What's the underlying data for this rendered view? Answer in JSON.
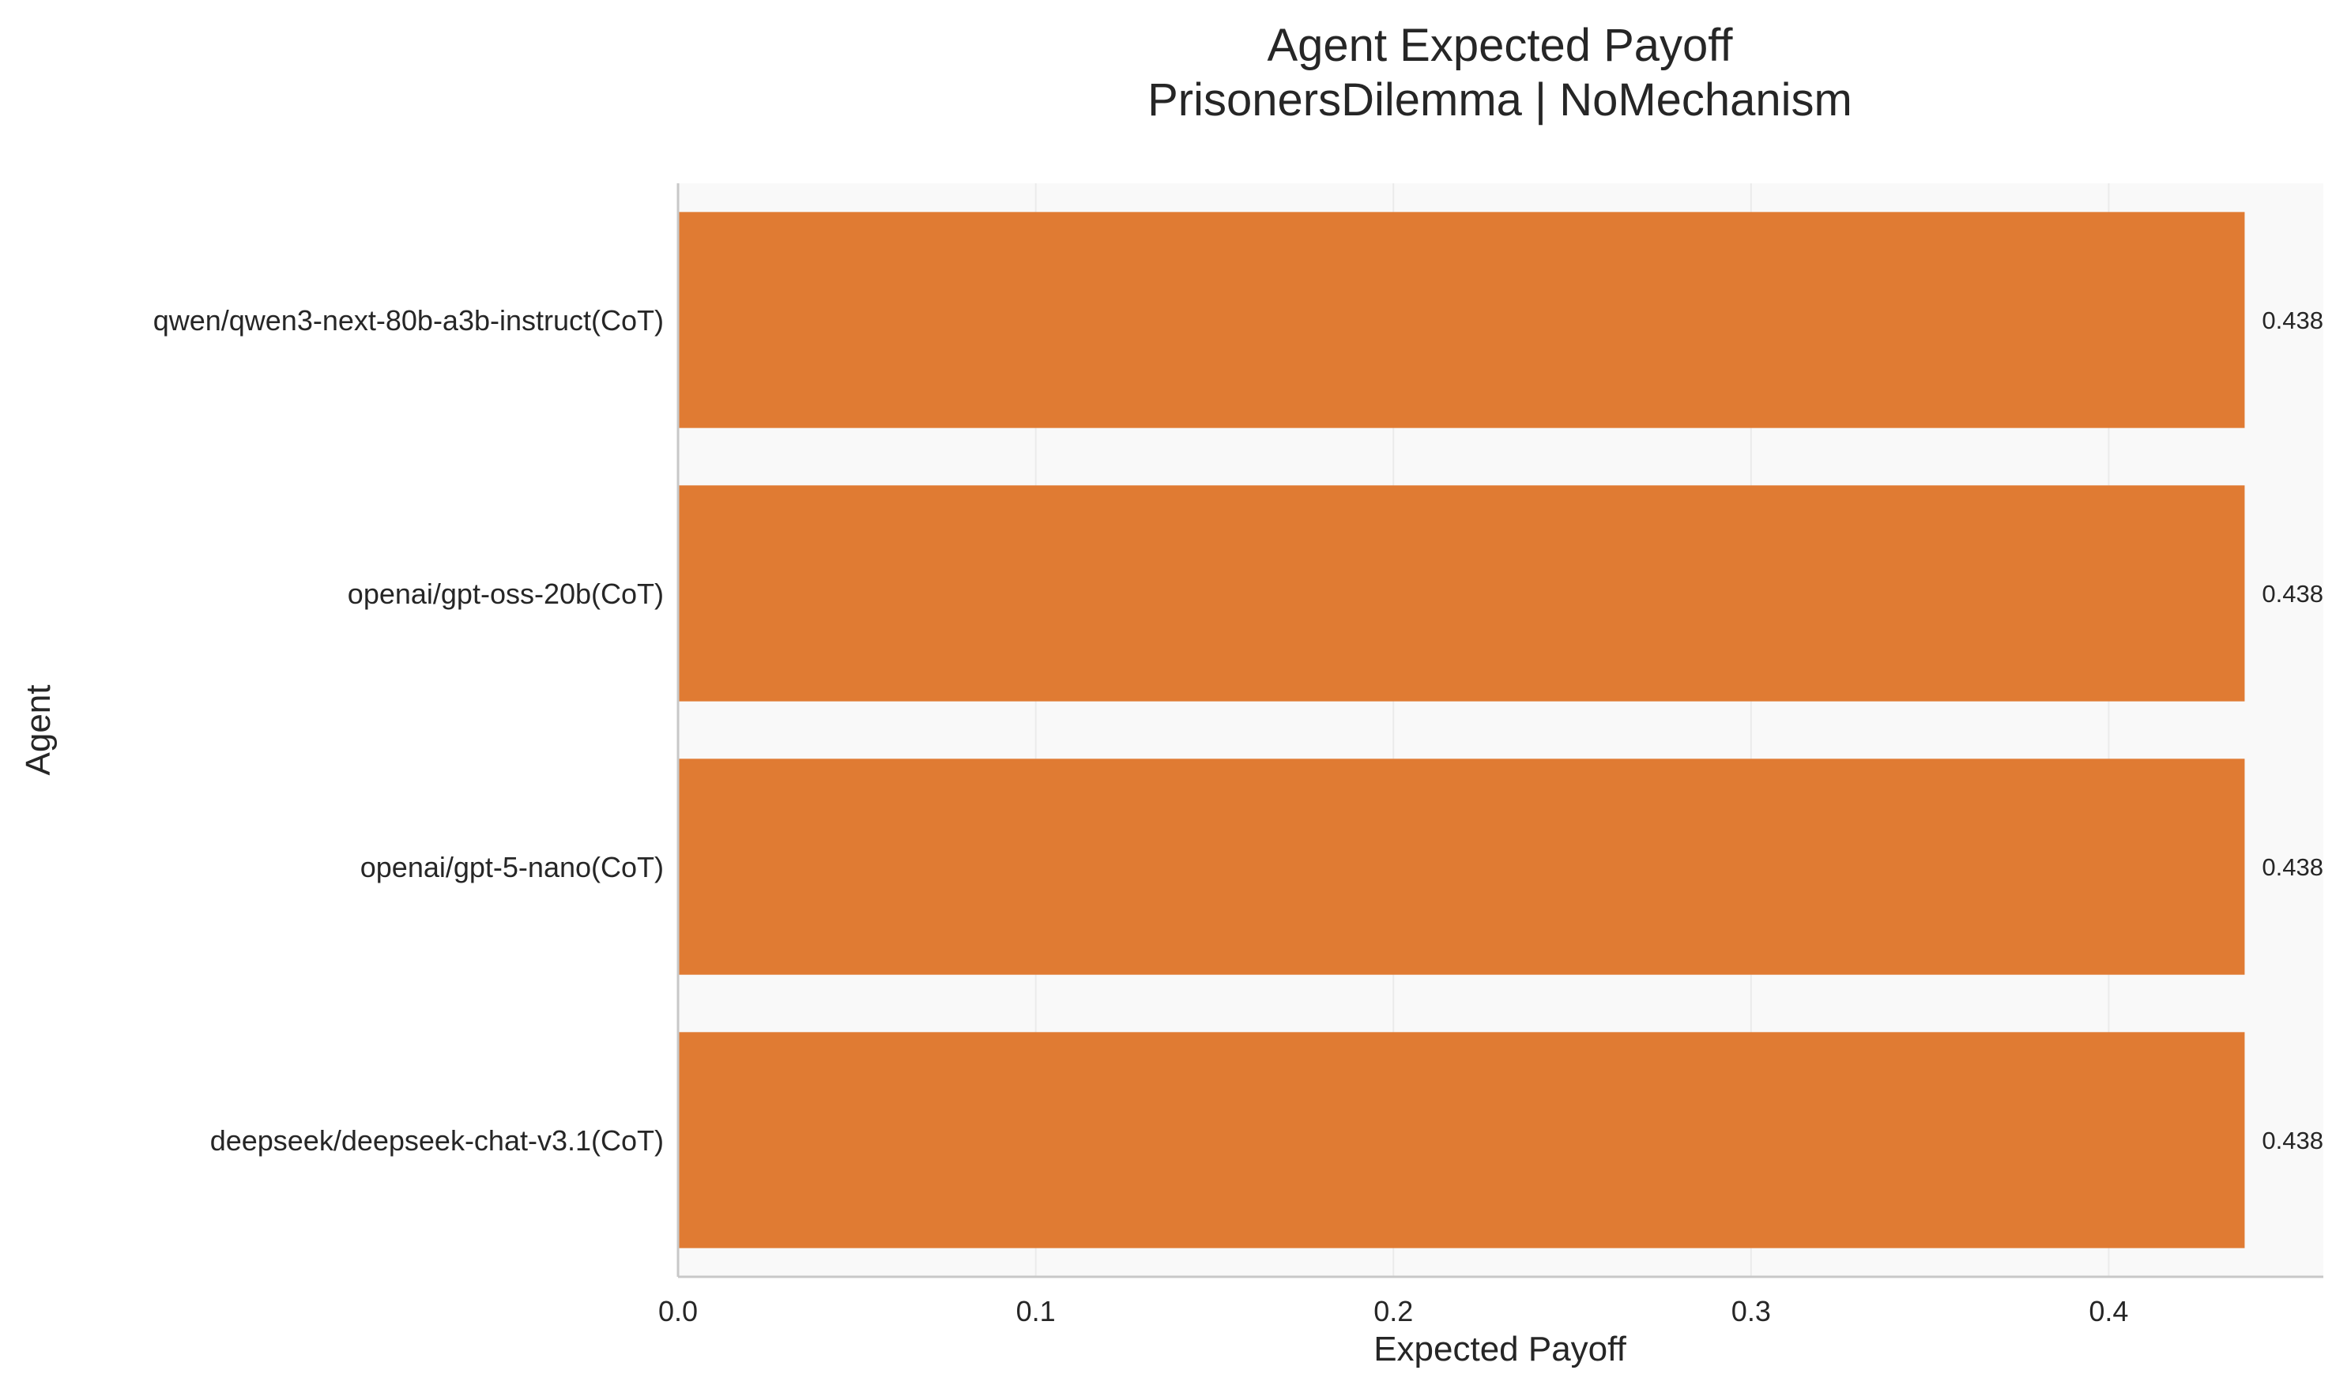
{
  "chart_data": {
    "type": "bar",
    "orientation": "horizontal",
    "title": "Agent Expected Payoff",
    "subtitle": "PrisonersDilemma | NoMechanism",
    "xlabel": "Expected Payoff",
    "ylabel": "Agent",
    "categories": [
      "qwen/qwen3-next-80b-a3b-instruct(CoT)",
      "openai/gpt-oss-20b(CoT)",
      "openai/gpt-5-nano(CoT)",
      "deepseek/deepseek-chat-v3.1(CoT)"
    ],
    "values": [
      0.438,
      0.438,
      0.438,
      0.438
    ],
    "value_labels": [
      "0.438",
      "0.438",
      "0.438",
      "0.438"
    ],
    "xlim": [
      0,
      0.46
    ],
    "xticks": [
      0.0,
      0.1,
      0.2,
      0.3,
      0.4
    ],
    "xtick_labels": [
      "0.0",
      "0.1",
      "0.2",
      "0.3",
      "0.4"
    ],
    "grid": true,
    "grid_axis": "x",
    "bar_color": "#e07b33",
    "plot_background": "#f9f9f9",
    "grid_color": "#ebebeb",
    "axis_color": "#c8c8c8",
    "text_color": "#262626"
  }
}
